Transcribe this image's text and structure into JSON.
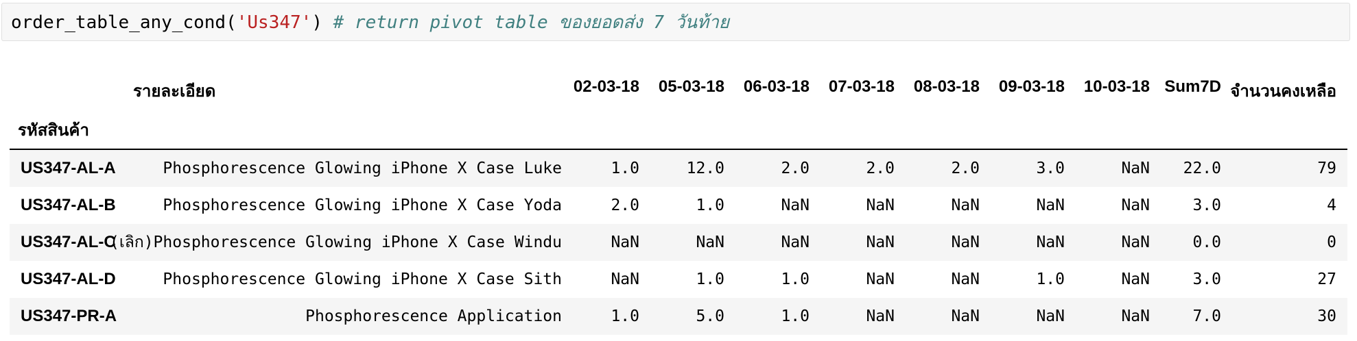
{
  "cell": {
    "func": "order_table_any_cond(",
    "arg": "'Us347'",
    "close": ")",
    "comment": "# return pivot table ของยอดส่ง 7 วันท้าย"
  },
  "table": {
    "desc_header": "รายละเอียด",
    "columns": [
      "02-03-18",
      "05-03-18",
      "06-03-18",
      "07-03-18",
      "08-03-18",
      "09-03-18",
      "10-03-18",
      "Sum7D",
      "จำนวนคงเหลือ"
    ],
    "index_name": "รหัสสินค้า",
    "rows": [
      {
        "id": "US347-AL-A",
        "desc": "Phosphorescence Glowing iPhone X Case Luke",
        "values": [
          "1.0",
          "12.0",
          "2.0",
          "2.0",
          "2.0",
          "3.0",
          "NaN",
          "22.0",
          "79"
        ]
      },
      {
        "id": "US347-AL-B",
        "desc": "Phosphorescence Glowing iPhone X Case Yoda",
        "values": [
          "2.0",
          "1.0",
          "NaN",
          "NaN",
          "NaN",
          "NaN",
          "NaN",
          "3.0",
          "4"
        ]
      },
      {
        "id": "US347-AL-C",
        "desc": "(เลิก)Phosphorescence Glowing iPhone X Case Windu",
        "values": [
          "NaN",
          "NaN",
          "NaN",
          "NaN",
          "NaN",
          "NaN",
          "NaN",
          "0.0",
          "0"
        ]
      },
      {
        "id": "US347-AL-D",
        "desc": "Phosphorescence Glowing iPhone X Case Sith",
        "values": [
          "NaN",
          "1.0",
          "1.0",
          "NaN",
          "NaN",
          "1.0",
          "NaN",
          "3.0",
          "27"
        ]
      },
      {
        "id": "US347-PR-A",
        "desc": "Phosphorescence Application",
        "values": [
          "1.0",
          "5.0",
          "1.0",
          "NaN",
          "NaN",
          "NaN",
          "NaN",
          "7.0",
          "30"
        ]
      }
    ]
  }
}
